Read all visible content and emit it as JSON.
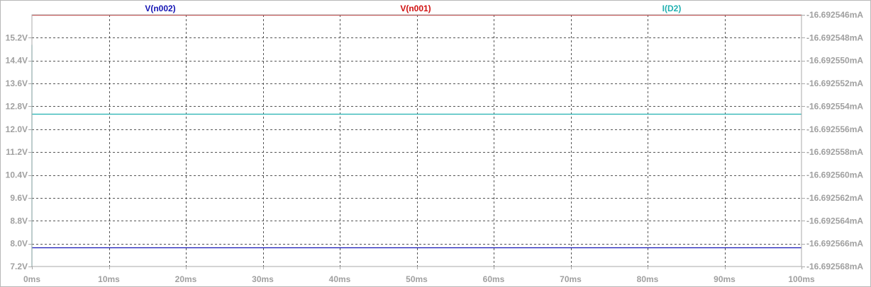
{
  "chart_data": {
    "type": "line",
    "x_axis": {
      "unit": "ms",
      "range": [
        0,
        100
      ],
      "ticks": [
        0,
        10,
        20,
        30,
        40,
        50,
        60,
        70,
        80,
        90,
        100
      ],
      "tick_labels": [
        "0ms",
        "10ms",
        "20ms",
        "30ms",
        "40ms",
        "50ms",
        "60ms",
        "70ms",
        "80ms",
        "90ms",
        "100ms"
      ]
    },
    "y_left": {
      "unit": "V",
      "range": [
        7.2,
        16.0
      ],
      "ticks": [
        7.2,
        8.0,
        8.8,
        9.6,
        10.4,
        11.2,
        12.0,
        12.8,
        13.6,
        14.4,
        15.2
      ],
      "tick_labels": [
        "7.2V",
        "8.0V",
        "8.8V",
        "9.6V",
        "10.4V",
        "11.2V",
        "12.0V",
        "12.8V",
        "13.6V",
        "14.4V",
        "15.2V"
      ]
    },
    "y_right": {
      "unit": "mA",
      "range": [
        -16.692568,
        -16.692546
      ],
      "ticks": [
        -16.692568,
        -16.692566,
        -16.692564,
        -16.692562,
        -16.69256,
        -16.692558,
        -16.692556,
        -16.692554,
        -16.692552,
        -16.69255,
        -16.692548,
        -16.692546
      ],
      "tick_labels": [
        "-16.692568mA",
        "-16.692566mA",
        "-16.692564mA",
        "-16.692562mA",
        "-16.692560mA",
        "-16.692558mA",
        "-16.692556mA",
        "-16.692554mA",
        "-16.692552mA",
        "-16.692550mA",
        "-16.692548mA",
        "-16.692546mA"
      ]
    },
    "grid": true,
    "legend": "top",
    "series": [
      {
        "name": "V(n002)",
        "color": "#1414b4",
        "axis": "left",
        "x": [
          0,
          100
        ],
        "y": [
          7.87,
          7.87
        ]
      },
      {
        "name": "V(n001)",
        "color": "#d01010",
        "axis": "left",
        "x": [
          0,
          100
        ],
        "y": [
          16.0,
          16.0
        ]
      },
      {
        "name": "I(D2)",
        "color": "#20b0b0",
        "axis": "left",
        "x": [
          0,
          0,
          0,
          100
        ],
        "y": [
          7.2,
          14.95,
          12.55,
          12.55
        ]
      }
    ]
  }
}
